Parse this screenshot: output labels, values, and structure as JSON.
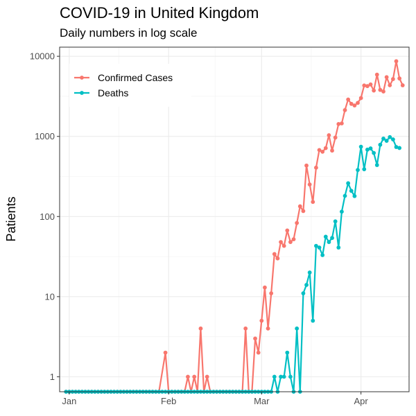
{
  "chart_data": {
    "type": "line",
    "title": "COVID-19 in United Kingdom",
    "subtitle": "Daily numbers in log scale",
    "ylabel": "Patients",
    "xlabel": "",
    "y_scale": "log10",
    "ylim": [
      0.65,
      13000
    ],
    "y_ticks": [
      1,
      10,
      100,
      1000,
      10000
    ],
    "y_tick_labels": [
      "1",
      "10",
      "100",
      "1000",
      "10000"
    ],
    "xlim": [
      "2019-12-29",
      "2020-04-16"
    ],
    "x_ticks": [
      "2020-01-01",
      "2020-02-01",
      "2020-03-01",
      "2020-04-01"
    ],
    "x_tick_labels": [
      "Jan",
      "Feb",
      "Mar",
      "Apr"
    ],
    "grid": true,
    "legend_position": "top-left",
    "series": [
      {
        "name": "Confirmed Cases",
        "color": "#F8766D",
        "points": [
          [
            "2019-12-31",
            0.65
          ],
          [
            "2020-01-01",
            0.65
          ],
          [
            "2020-01-02",
            0.65
          ],
          [
            "2020-01-03",
            0.65
          ],
          [
            "2020-01-04",
            0.65
          ],
          [
            "2020-01-05",
            0.65
          ],
          [
            "2020-01-06",
            0.65
          ],
          [
            "2020-01-07",
            0.65
          ],
          [
            "2020-01-08",
            0.65
          ],
          [
            "2020-01-09",
            0.65
          ],
          [
            "2020-01-10",
            0.65
          ],
          [
            "2020-01-11",
            0.65
          ],
          [
            "2020-01-12",
            0.65
          ],
          [
            "2020-01-13",
            0.65
          ],
          [
            "2020-01-14",
            0.65
          ],
          [
            "2020-01-15",
            0.65
          ],
          [
            "2020-01-16",
            0.65
          ],
          [
            "2020-01-17",
            0.65
          ],
          [
            "2020-01-18",
            0.65
          ],
          [
            "2020-01-19",
            0.65
          ],
          [
            "2020-01-20",
            0.65
          ],
          [
            "2020-01-21",
            0.65
          ],
          [
            "2020-01-22",
            0.65
          ],
          [
            "2020-01-23",
            0.65
          ],
          [
            "2020-01-24",
            0.65
          ],
          [
            "2020-01-25",
            0.65
          ],
          [
            "2020-01-26",
            0.65
          ],
          [
            "2020-01-27",
            0.65
          ],
          [
            "2020-01-28",
            0.65
          ],
          [
            "2020-01-29",
            0.65
          ],
          [
            "2020-01-31",
            2
          ],
          [
            "2020-02-01",
            0.65
          ],
          [
            "2020-02-02",
            0.65
          ],
          [
            "2020-02-03",
            0.65
          ],
          [
            "2020-02-04",
            0.65
          ],
          [
            "2020-02-05",
            0.65
          ],
          [
            "2020-02-06",
            0.65
          ],
          [
            "2020-02-07",
            1
          ],
          [
            "2020-02-08",
            0.65
          ],
          [
            "2020-02-09",
            1
          ],
          [
            "2020-02-10",
            0.65
          ],
          [
            "2020-02-11",
            4
          ],
          [
            "2020-02-12",
            0.65
          ],
          [
            "2020-02-13",
            1
          ],
          [
            "2020-02-14",
            0.65
          ],
          [
            "2020-02-15",
            0.65
          ],
          [
            "2020-02-16",
            0.65
          ],
          [
            "2020-02-17",
            0.65
          ],
          [
            "2020-02-18",
            0.65
          ],
          [
            "2020-02-19",
            0.65
          ],
          [
            "2020-02-20",
            0.65
          ],
          [
            "2020-02-21",
            0.65
          ],
          [
            "2020-02-22",
            0.65
          ],
          [
            "2020-02-23",
            0.65
          ],
          [
            "2020-02-24",
            0.65
          ],
          [
            "2020-02-25",
            4
          ],
          [
            "2020-02-26",
            0.65
          ],
          [
            "2020-02-27",
            0.65
          ],
          [
            "2020-02-28",
            3
          ],
          [
            "2020-02-29",
            2
          ],
          [
            "2020-03-01",
            5
          ],
          [
            "2020-03-02",
            13
          ],
          [
            "2020-03-03",
            4
          ],
          [
            "2020-03-04",
            11
          ],
          [
            "2020-03-05",
            34
          ],
          [
            "2020-03-06",
            30
          ],
          [
            "2020-03-07",
            48
          ],
          [
            "2020-03-08",
            43
          ],
          [
            "2020-03-09",
            67
          ],
          [
            "2020-03-10",
            48
          ],
          [
            "2020-03-11",
            52
          ],
          [
            "2020-03-12",
            83
          ],
          [
            "2020-03-13",
            134
          ],
          [
            "2020-03-14",
            117
          ],
          [
            "2020-03-15",
            433
          ],
          [
            "2020-03-16",
            251
          ],
          [
            "2020-03-17",
            152
          ],
          [
            "2020-03-18",
            407
          ],
          [
            "2020-03-19",
            676
          ],
          [
            "2020-03-20",
            643
          ],
          [
            "2020-03-21",
            714
          ],
          [
            "2020-03-22",
            1035
          ],
          [
            "2020-03-23",
            665
          ],
          [
            "2020-03-24",
            967
          ],
          [
            "2020-03-25",
            1427
          ],
          [
            "2020-03-26",
            1452
          ],
          [
            "2020-03-27",
            2129
          ],
          [
            "2020-03-28",
            2885
          ],
          [
            "2020-03-29",
            2546
          ],
          [
            "2020-03-30",
            2433
          ],
          [
            "2020-03-31",
            2619
          ],
          [
            "2020-04-01",
            3009
          ],
          [
            "2020-04-02",
            4324
          ],
          [
            "2020-04-03",
            4244
          ],
          [
            "2020-04-04",
            4450
          ],
          [
            "2020-04-05",
            3735
          ],
          [
            "2020-04-06",
            5903
          ],
          [
            "2020-04-07",
            3802
          ],
          [
            "2020-04-08",
            3634
          ],
          [
            "2020-04-09",
            5491
          ],
          [
            "2020-04-10",
            4344
          ],
          [
            "2020-04-11",
            5195
          ],
          [
            "2020-04-12",
            8681
          ],
          [
            "2020-04-13",
            5288
          ],
          [
            "2020-04-14",
            4342
          ]
        ]
      },
      {
        "name": "Deaths",
        "color": "#00BFC4",
        "points": [
          [
            "2019-12-31",
            0.65
          ],
          [
            "2020-01-01",
            0.65
          ],
          [
            "2020-01-02",
            0.65
          ],
          [
            "2020-01-03",
            0.65
          ],
          [
            "2020-01-04",
            0.65
          ],
          [
            "2020-01-05",
            0.65
          ],
          [
            "2020-01-06",
            0.65
          ],
          [
            "2020-01-07",
            0.65
          ],
          [
            "2020-01-08",
            0.65
          ],
          [
            "2020-01-09",
            0.65
          ],
          [
            "2020-01-10",
            0.65
          ],
          [
            "2020-01-11",
            0.65
          ],
          [
            "2020-01-12",
            0.65
          ],
          [
            "2020-01-13",
            0.65
          ],
          [
            "2020-01-14",
            0.65
          ],
          [
            "2020-01-15",
            0.65
          ],
          [
            "2020-01-16",
            0.65
          ],
          [
            "2020-01-17",
            0.65
          ],
          [
            "2020-01-18",
            0.65
          ],
          [
            "2020-01-19",
            0.65
          ],
          [
            "2020-01-20",
            0.65
          ],
          [
            "2020-01-21",
            0.65
          ],
          [
            "2020-01-22",
            0.65
          ],
          [
            "2020-01-23",
            0.65
          ],
          [
            "2020-01-24",
            0.65
          ],
          [
            "2020-01-25",
            0.65
          ],
          [
            "2020-01-26",
            0.65
          ],
          [
            "2020-01-27",
            0.65
          ],
          [
            "2020-01-28",
            0.65
          ],
          [
            "2020-01-29",
            0.65
          ],
          [
            "2020-01-30",
            0.65
          ],
          [
            "2020-01-31",
            0.65
          ],
          [
            "2020-02-01",
            0.65
          ],
          [
            "2020-02-02",
            0.65
          ],
          [
            "2020-02-03",
            0.65
          ],
          [
            "2020-02-04",
            0.65
          ],
          [
            "2020-02-05",
            0.65
          ],
          [
            "2020-02-06",
            0.65
          ],
          [
            "2020-02-07",
            0.65
          ],
          [
            "2020-02-08",
            0.65
          ],
          [
            "2020-02-09",
            0.65
          ],
          [
            "2020-02-10",
            0.65
          ],
          [
            "2020-02-11",
            0.65
          ],
          [
            "2020-02-12",
            0.65
          ],
          [
            "2020-02-13",
            0.65
          ],
          [
            "2020-02-14",
            0.65
          ],
          [
            "2020-02-15",
            0.65
          ],
          [
            "2020-02-16",
            0.65
          ],
          [
            "2020-02-17",
            0.65
          ],
          [
            "2020-02-18",
            0.65
          ],
          [
            "2020-02-19",
            0.65
          ],
          [
            "2020-02-20",
            0.65
          ],
          [
            "2020-02-21",
            0.65
          ],
          [
            "2020-02-22",
            0.65
          ],
          [
            "2020-02-23",
            0.65
          ],
          [
            "2020-02-24",
            0.65
          ],
          [
            "2020-02-25",
            0.65
          ],
          [
            "2020-02-26",
            0.65
          ],
          [
            "2020-02-27",
            0.65
          ],
          [
            "2020-02-28",
            0.65
          ],
          [
            "2020-02-29",
            0.65
          ],
          [
            "2020-03-01",
            0.65
          ],
          [
            "2020-03-02",
            0.65
          ],
          [
            "2020-03-03",
            0.65
          ],
          [
            "2020-03-04",
            0.65
          ],
          [
            "2020-03-05",
            1
          ],
          [
            "2020-03-06",
            0.65
          ],
          [
            "2020-03-07",
            1
          ],
          [
            "2020-03-08",
            1
          ],
          [
            "2020-03-09",
            2
          ],
          [
            "2020-03-10",
            1
          ],
          [
            "2020-03-11",
            0.65
          ],
          [
            "2020-03-12",
            4
          ],
          [
            "2020-03-13",
            0.65
          ],
          [
            "2020-03-14",
            11
          ],
          [
            "2020-03-15",
            14
          ],
          [
            "2020-03-16",
            20
          ],
          [
            "2020-03-17",
            5
          ],
          [
            "2020-03-18",
            43
          ],
          [
            "2020-03-19",
            41
          ],
          [
            "2020-03-20",
            33
          ],
          [
            "2020-03-21",
            56
          ],
          [
            "2020-03-22",
            48
          ],
          [
            "2020-03-23",
            54
          ],
          [
            "2020-03-24",
            87
          ],
          [
            "2020-03-25",
            41
          ],
          [
            "2020-03-26",
            115
          ],
          [
            "2020-03-27",
            181
          ],
          [
            "2020-03-28",
            260
          ],
          [
            "2020-03-29",
            209
          ],
          [
            "2020-03-30",
            180
          ],
          [
            "2020-03-31",
            381
          ],
          [
            "2020-04-01",
            743
          ],
          [
            "2020-04-02",
            389
          ],
          [
            "2020-04-03",
            684
          ],
          [
            "2020-04-04",
            708
          ],
          [
            "2020-04-05",
            621
          ],
          [
            "2020-04-06",
            439
          ],
          [
            "2020-04-07",
            786
          ],
          [
            "2020-04-08",
            938
          ],
          [
            "2020-04-09",
            881
          ],
          [
            "2020-04-10",
            980
          ],
          [
            "2020-04-11",
            917
          ],
          [
            "2020-04-12",
            737
          ],
          [
            "2020-04-13",
            717
          ]
        ]
      }
    ]
  }
}
